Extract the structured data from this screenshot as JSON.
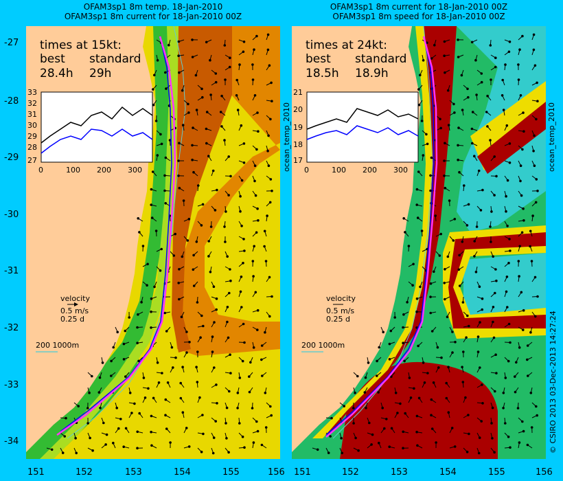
{
  "left_panel": {
    "title1": "OFAM3sp1 8m temp. 18-Jan-2010",
    "title2": "OFAM3sp1 8m current for 18-Jan-2010 00Z",
    "times_heading": "times at 15kt:",
    "col_best": "best",
    "col_standard": "standard",
    "best_value": "28.4h",
    "standard_value": "29h",
    "inset_y_ticks": [
      "33",
      "32",
      "31",
      "30",
      "29",
      "28",
      "27"
    ],
    "inset_x_ticks": [
      "0",
      "100",
      "200",
      "300"
    ],
    "side_label": "ocean_temp_2010"
  },
  "right_panel": {
    "title1": "OFAM3sp1 8m current for 18-Jan-2010 00Z",
    "title2": "OFAM3sp1 8m speed for 18-Jan-2010 00Z",
    "times_heading": "times at 24kt:",
    "col_best": "best",
    "col_standard": "standard",
    "best_value": "18.5h",
    "standard_value": "18.9h",
    "inset_y_ticks": [
      "21",
      "20",
      "19",
      "18",
      "17"
    ],
    "inset_x_ticks": [
      "0",
      "100",
      "200",
      "300"
    ],
    "side_label": "ocean_temp_2010"
  },
  "legend": {
    "velocity": "velocity",
    "speed": "0.5 m/s",
    "duration": "0.25 d",
    "depth": "200  1000m"
  },
  "axes": {
    "lat_ticks": [
      "-27",
      "-28",
      "-29",
      "-30",
      "-31",
      "-32",
      "-33",
      "-34"
    ],
    "lon_ticks": [
      "151",
      "152",
      "153",
      "154",
      "155",
      "156"
    ]
  },
  "credit": "© CSIRO 2013   03-Dec-2013 14:27:24",
  "colors": {
    "background": "#00ccff",
    "land": "#ffcc99",
    "route_best": "#ff33ff",
    "best_line": "#000000",
    "standard_line": "#0000ff",
    "isobath": "#66cccc"
  }
}
